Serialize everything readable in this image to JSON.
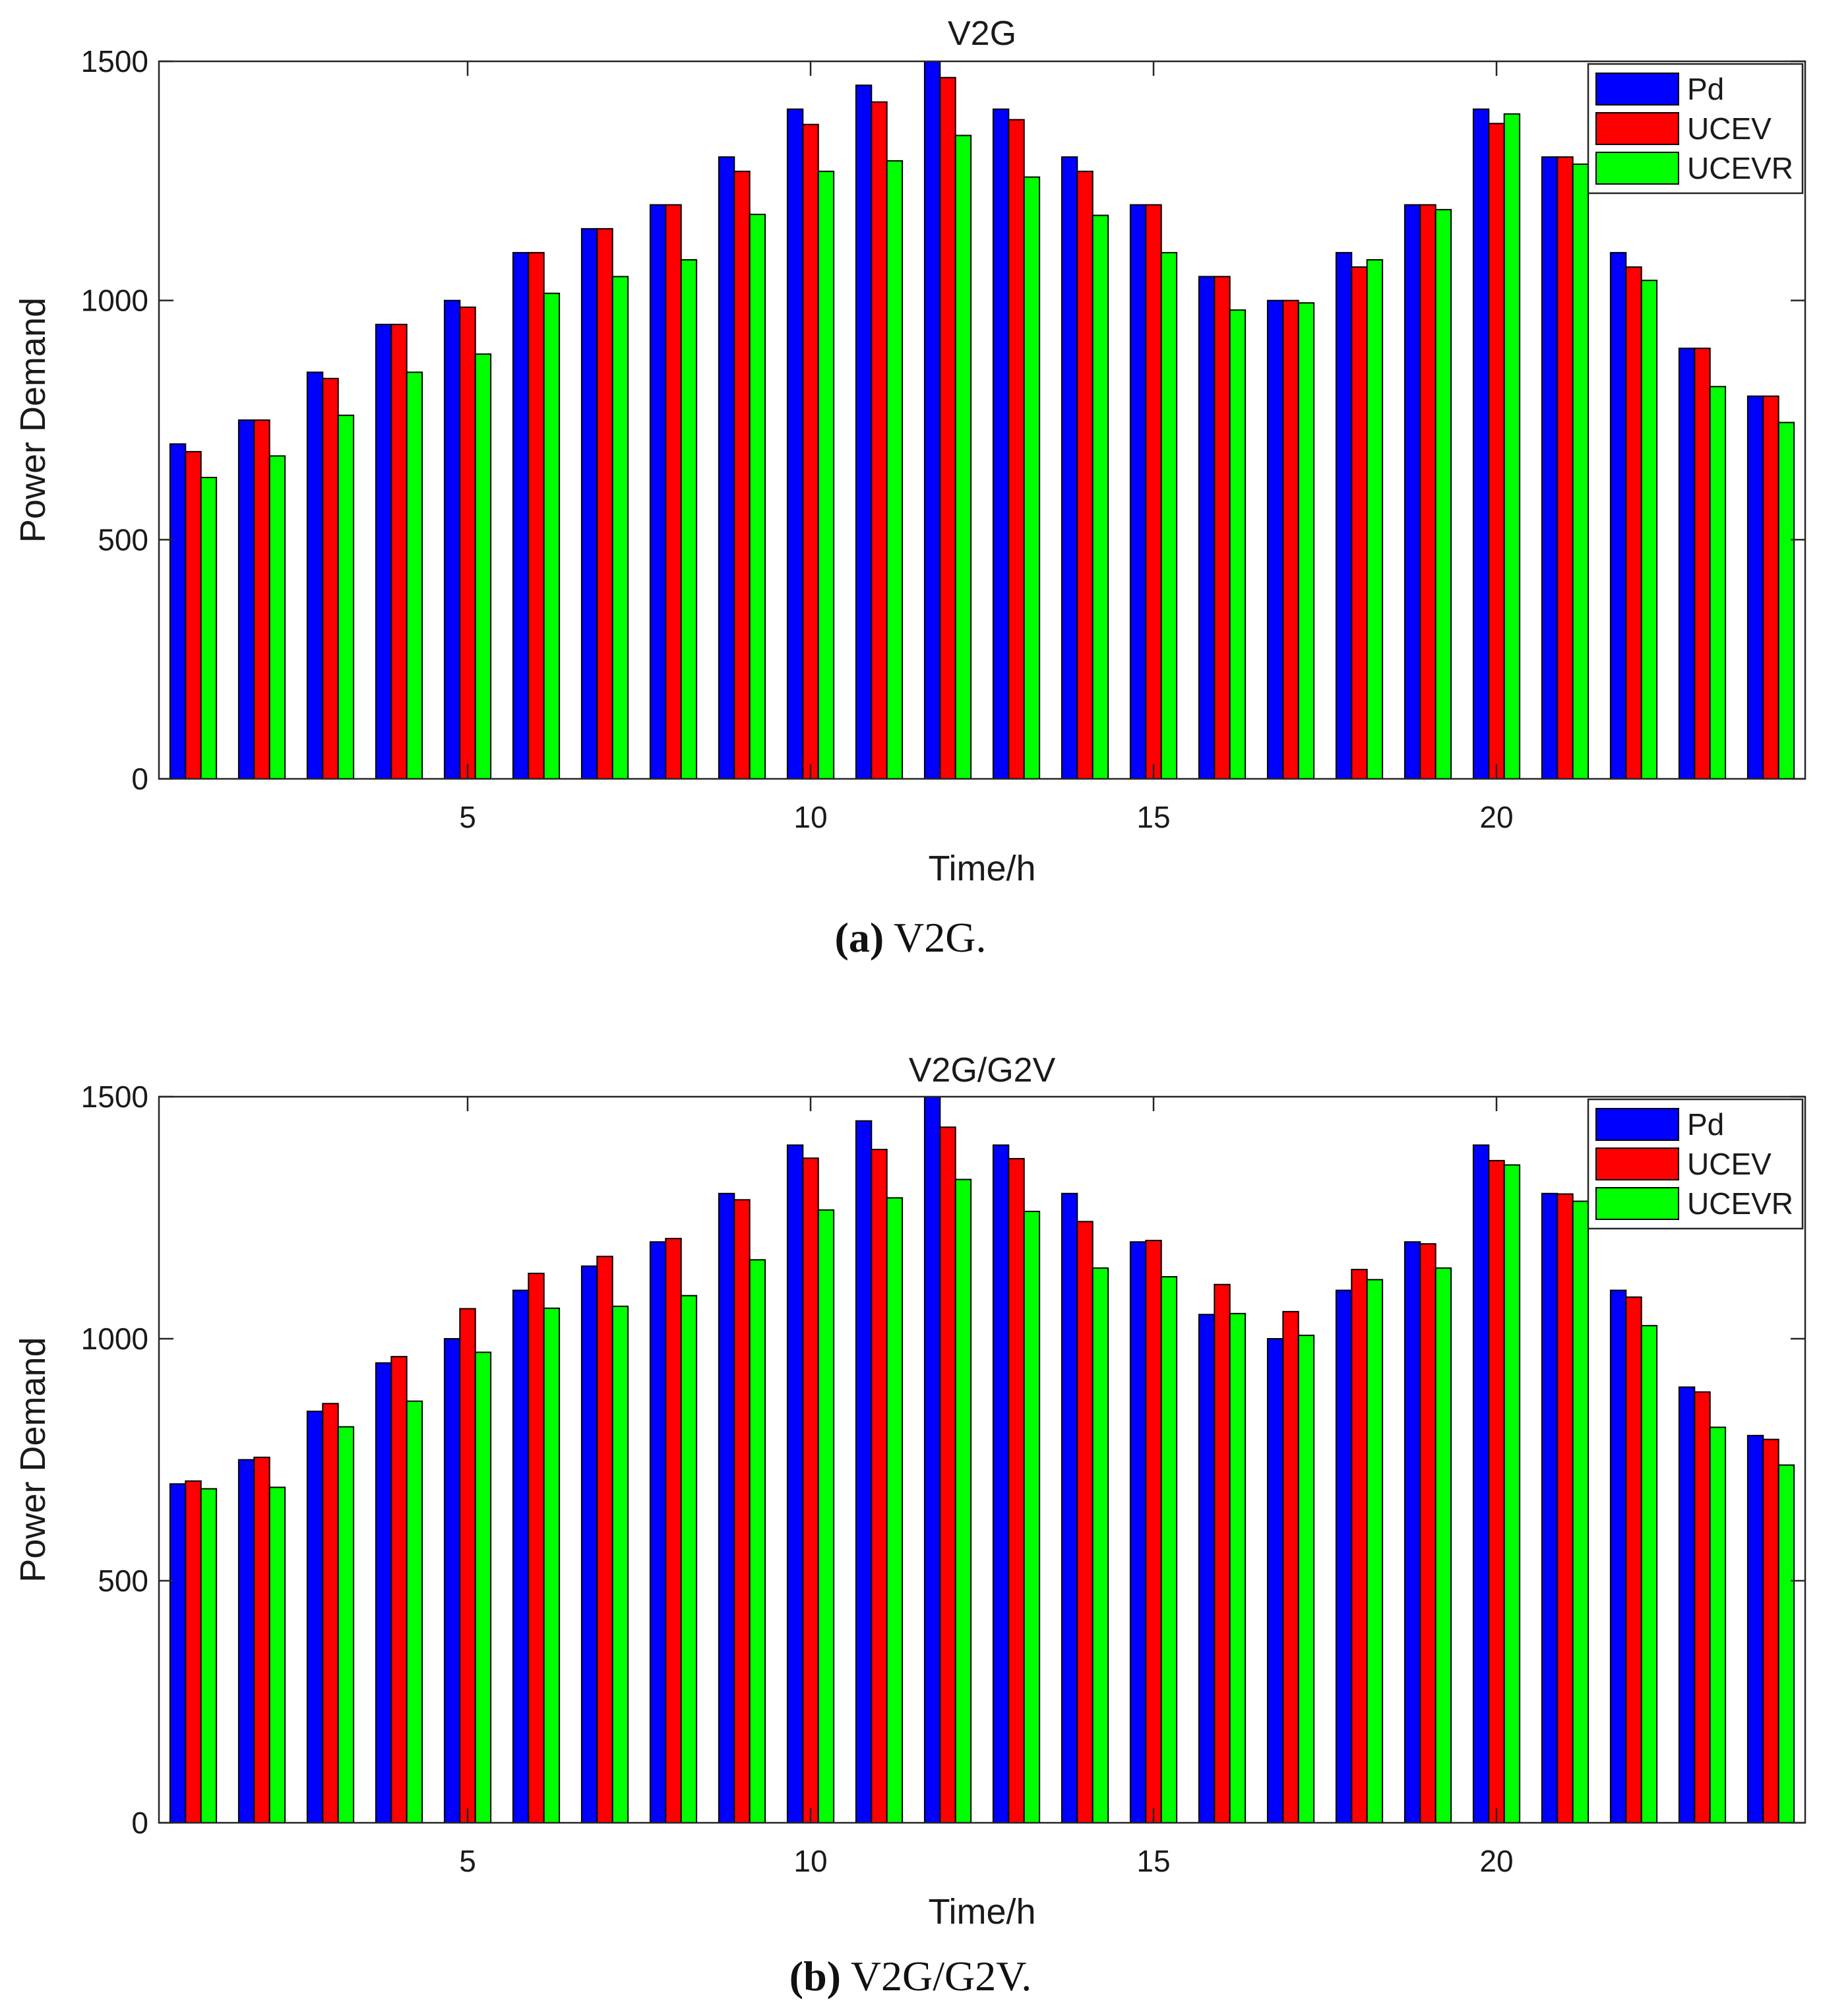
{
  "series_names": [
    "Pd",
    "UCEV",
    "UCEVR"
  ],
  "series_colors": {
    "Pd": "#0000ff",
    "UCEV": "#ff0000",
    "UCEVR": "#00ff00"
  },
  "chart_data": [
    {
      "type": "bar",
      "title": "V2G",
      "xlabel": "Time/h",
      "ylabel": "Power Demand",
      "ylim": [
        0,
        1500
      ],
      "yticks": [
        0,
        500,
        1000,
        1500
      ],
      "xticks": [
        5,
        10,
        15,
        20
      ],
      "x": [
        1,
        2,
        3,
        4,
        5,
        6,
        7,
        8,
        9,
        10,
        11,
        12,
        13,
        14,
        15,
        16,
        17,
        18,
        19,
        20,
        21,
        22,
        23,
        24
      ],
      "legend_location": "top-right",
      "series": [
        {
          "name": "Pd",
          "values": [
            700,
            750,
            850,
            950,
            1000,
            1100,
            1150,
            1200,
            1300,
            1400,
            1450,
            1500,
            1400,
            1300,
            1200,
            1050,
            1000,
            1100,
            1200,
            1400,
            1300,
            1100,
            900,
            800
          ]
        },
        {
          "name": "UCEV",
          "values": [
            684,
            750,
            837,
            950,
            986,
            1100,
            1150,
            1200,
            1270,
            1368,
            1415,
            1466,
            1378,
            1270,
            1200,
            1050,
            1000,
            1070,
            1200,
            1370,
            1300,
            1070,
            900,
            800
          ]
        },
        {
          "name": "UCEVR",
          "values": [
            630,
            675,
            760,
            850,
            888,
            1015,
            1050,
            1085,
            1180,
            1270,
            1292,
            1345,
            1258,
            1178,
            1100,
            980,
            995,
            1085,
            1190,
            1390,
            1285,
            1042,
            820,
            745
          ]
        }
      ]
    },
    {
      "type": "bar",
      "title": "V2G/G2V",
      "xlabel": "Time/h",
      "ylabel": "Power Demand",
      "ylim": [
        0,
        1500
      ],
      "yticks": [
        0,
        500,
        1000,
        1500
      ],
      "xticks": [
        5,
        10,
        15,
        20
      ],
      "x": [
        1,
        2,
        3,
        4,
        5,
        6,
        7,
        8,
        9,
        10,
        11,
        12,
        13,
        14,
        15,
        16,
        17,
        18,
        19,
        20,
        21,
        22,
        23,
        24
      ],
      "legend_location": "top-right",
      "series": [
        {
          "name": "Pd",
          "values": [
            700,
            750,
            850,
            950,
            1000,
            1100,
            1150,
            1200,
            1300,
            1400,
            1450,
            1500,
            1400,
            1300,
            1200,
            1050,
            1000,
            1100,
            1200,
            1400,
            1300,
            1100,
            900,
            800
          ]
        },
        {
          "name": "UCEV",
          "values": [
            706,
            755,
            866,
            963,
            1062,
            1135,
            1170,
            1207,
            1287,
            1373,
            1391,
            1437,
            1372,
            1242,
            1203,
            1112,
            1056,
            1143,
            1196,
            1368,
            1299,
            1086,
            890,
            792
          ]
        },
        {
          "name": "UCEVR",
          "values": [
            690,
            693,
            818,
            871,
            972,
            1063,
            1067,
            1089,
            1163,
            1266,
            1291,
            1329,
            1263,
            1146,
            1128,
            1052,
            1007,
            1122,
            1146,
            1359,
            1284,
            1027,
            817,
            739
          ]
        }
      ]
    }
  ],
  "captions": [
    {
      "label": "(a)",
      "text": "V2G."
    },
    {
      "label": "(b)",
      "text": "V2G/G2V."
    }
  ]
}
